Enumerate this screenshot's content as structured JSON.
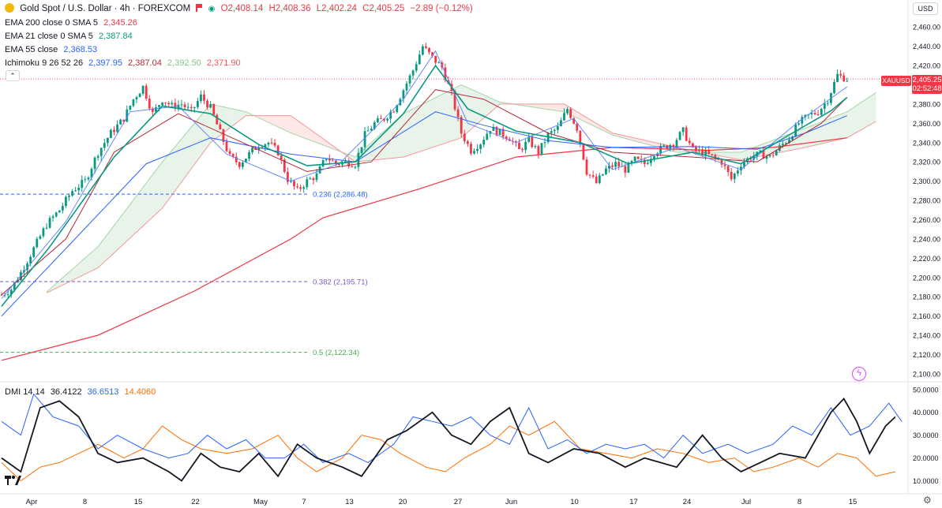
{
  "header": {
    "title": "Gold Spot / U.S. Dollar · 4h · FOREXCOM",
    "open": "O2,408.14",
    "high": "H2,408.36",
    "low": "L2,402.24",
    "close": "C2,405.25",
    "change": "−2.89 (−0.12%)",
    "currency": "USD"
  },
  "indicators": [
    {
      "label": "EMA 200 close 0 SMA 5",
      "values": [
        "2,345.26"
      ],
      "colors": [
        "#f23645"
      ]
    },
    {
      "label": "EMA 21 close 0 SMA 5",
      "values": [
        "2,387.84"
      ],
      "colors": [
        "#089981"
      ]
    },
    {
      "label": "EMA 55 close",
      "values": [
        "2,368.53"
      ],
      "colors": [
        "#2962ff"
      ]
    },
    {
      "label": "Ichimoku 9 26 52 26",
      "values": [
        "2,397.95",
        "2,387.04",
        "2,392.50",
        "2,371.90"
      ],
      "colors": [
        "#2962ff",
        "#b22833",
        "#81c784",
        "#f7525f"
      ]
    }
  ],
  "dmi": {
    "label": "DMI 14 14",
    "values": [
      "36.4122",
      "36.6513",
      "14.4060"
    ],
    "colors": [
      "#131722",
      "#2962ff",
      "#ff6d00"
    ]
  },
  "price_tag": {
    "symbol": "XAUUSD",
    "price": "2,405.25",
    "countdown": "02:52:48"
  },
  "fib_levels": [
    {
      "label": "0.236 (2,286.48)",
      "value": 2286.48,
      "color": "#2962ff"
    },
    {
      "label": "0.382 (2,195.71)",
      "value": 2195.71,
      "color": "#7e57c2"
    },
    {
      "label": "0.5 (2,122.34)",
      "value": 2122.34,
      "color": "#4caf50"
    }
  ],
  "chart_data": {
    "type": "candlestick",
    "price_axis": {
      "ticks": [
        "2,460.00",
        "2,440.00",
        "2,420.00",
        "2,400.00",
        "2,380.00",
        "2,360.00",
        "2,340.00",
        "2,320.00",
        "2,300.00",
        "2,280.00",
        "2,260.00",
        "2,240.00",
        "2,220.00",
        "2,200.00",
        "2,180.00",
        "2,160.00",
        "2,140.00",
        "2,120.00",
        "2,100.00"
      ],
      "range": [
        2095,
        2470
      ]
    },
    "dmi_axis": {
      "ticks": [
        "50.0000",
        "40.0000",
        "30.0000",
        "20.0000",
        "10.0000"
      ],
      "range": [
        5,
        52
      ]
    },
    "time_axis": [
      "Apr",
      "8",
      "15",
      "22",
      "May",
      "7",
      "13",
      "20",
      "27",
      "Jun",
      "10",
      "17",
      "24",
      "Jul",
      "8",
      "15"
    ],
    "close_path": [
      [
        0,
        2182
      ],
      [
        3,
        2188
      ],
      [
        6,
        2205
      ],
      [
        10,
        2230
      ],
      [
        14,
        2255
      ],
      [
        18,
        2270
      ],
      [
        22,
        2290
      ],
      [
        26,
        2300
      ],
      [
        30,
        2330
      ],
      [
        34,
        2350
      ],
      [
        38,
        2365
      ],
      [
        41,
        2385
      ],
      [
        44,
        2398
      ],
      [
        47,
        2370
      ],
      [
        50,
        2385
      ],
      [
        53,
        2378
      ],
      [
        56,
        2380
      ],
      [
        59,
        2372
      ],
      [
        62,
        2388
      ],
      [
        65,
        2376
      ],
      [
        68,
        2350
      ],
      [
        71,
        2325
      ],
      [
        74,
        2318
      ],
      [
        77,
        2328
      ],
      [
        80,
        2338
      ],
      [
        83,
        2340
      ],
      [
        86,
        2330
      ],
      [
        89,
        2302
      ],
      [
        92,
        2290
      ],
      [
        95,
        2300
      ],
      [
        98,
        2306
      ],
      [
        101,
        2325
      ],
      [
        104,
        2318
      ],
      [
        107,
        2320
      ],
      [
        110,
        2318
      ],
      [
        113,
        2348
      ],
      [
        116,
        2360
      ],
      [
        119,
        2365
      ],
      [
        122,
        2375
      ],
      [
        125,
        2395
      ],
      [
        128,
        2415
      ],
      [
        131,
        2440
      ],
      [
        134,
        2428
      ],
      [
        137,
        2418
      ],
      [
        140,
        2390
      ],
      [
        143,
        2350
      ],
      [
        146,
        2332
      ],
      [
        149,
        2340
      ],
      [
        152,
        2355
      ],
      [
        155,
        2350
      ],
      [
        158,
        2345
      ],
      [
        161,
        2332
      ],
      [
        164,
        2342
      ],
      [
        167,
        2330
      ],
      [
        170,
        2348
      ],
      [
        173,
        2355
      ],
      [
        176,
        2375
      ],
      [
        179,
        2355
      ],
      [
        182,
        2310
      ],
      [
        185,
        2298
      ],
      [
        188,
        2312
      ],
      [
        191,
        2318
      ],
      [
        194,
        2312
      ],
      [
        197,
        2322
      ],
      [
        200,
        2318
      ],
      [
        203,
        2330
      ],
      [
        206,
        2335
      ],
      [
        209,
        2340
      ],
      [
        212,
        2352
      ],
      [
        215,
        2332
      ],
      [
        218,
        2330
      ],
      [
        221,
        2325
      ],
      [
        224,
        2320
      ],
      [
        227,
        2302
      ],
      [
        230,
        2318
      ],
      [
        233,
        2325
      ],
      [
        236,
        2328
      ],
      [
        239,
        2325
      ],
      [
        242,
        2335
      ],
      [
        245,
        2345
      ],
      [
        248,
        2360
      ],
      [
        251,
        2368
      ],
      [
        254,
        2372
      ],
      [
        257,
        2385
      ],
      [
        260,
        2410
      ],
      [
        263,
        2406
      ]
    ],
    "ema200": [
      [
        0,
        2114
      ],
      [
        30,
        2140
      ],
      [
        60,
        2186
      ],
      [
        90,
        2240
      ],
      [
        100,
        2262
      ],
      [
        130,
        2292
      ],
      [
        160,
        2325
      ],
      [
        190,
        2335
      ],
      [
        220,
        2332
      ],
      [
        240,
        2335
      ],
      [
        263,
        2345
      ]
    ],
    "ema55": [
      [
        0,
        2160
      ],
      [
        20,
        2230
      ],
      [
        45,
        2318
      ],
      [
        65,
        2345
      ],
      [
        90,
        2328
      ],
      [
        110,
        2320
      ],
      [
        135,
        2372
      ],
      [
        150,
        2358
      ],
      [
        170,
        2342
      ],
      [
        190,
        2335
      ],
      [
        215,
        2336
      ],
      [
        235,
        2333
      ],
      [
        250,
        2350
      ],
      [
        263,
        2368
      ]
    ],
    "ema21": [
      [
        0,
        2170
      ],
      [
        15,
        2232
      ],
      [
        35,
        2325
      ],
      [
        50,
        2378
      ],
      [
        65,
        2370
      ],
      [
        80,
        2338
      ],
      [
        95,
        2316
      ],
      [
        110,
        2320
      ],
      [
        125,
        2370
      ],
      [
        135,
        2420
      ],
      [
        145,
        2375
      ],
      [
        160,
        2352
      ],
      [
        180,
        2340
      ],
      [
        195,
        2318
      ],
      [
        215,
        2330
      ],
      [
        230,
        2318
      ],
      [
        245,
        2348
      ],
      [
        258,
        2373
      ],
      [
        263,
        2387
      ]
    ],
    "tenkan": [
      [
        0,
        2178
      ],
      [
        20,
        2258
      ],
      [
        40,
        2372
      ],
      [
        55,
        2378
      ],
      [
        70,
        2328
      ],
      [
        90,
        2300
      ],
      [
        105,
        2318
      ],
      [
        125,
        2385
      ],
      [
        135,
        2435
      ],
      [
        145,
        2360
      ],
      [
        160,
        2340
      ],
      [
        178,
        2365
      ],
      [
        190,
        2312
      ],
      [
        210,
        2335
      ],
      [
        230,
        2312
      ],
      [
        248,
        2362
      ],
      [
        263,
        2398
      ]
    ],
    "kijun": [
      [
        0,
        2182
      ],
      [
        20,
        2240
      ],
      [
        35,
        2330
      ],
      [
        55,
        2370
      ],
      [
        75,
        2340
      ],
      [
        95,
        2310
      ],
      [
        115,
        2320
      ],
      [
        135,
        2395
      ],
      [
        150,
        2385
      ],
      [
        170,
        2350
      ],
      [
        190,
        2330
      ],
      [
        215,
        2325
      ],
      [
        235,
        2320
      ],
      [
        255,
        2360
      ],
      [
        263,
        2387
      ]
    ],
    "cloud": {
      "span_a": [
        [
          14,
          2185
        ],
        [
          30,
          2232
        ],
        [
          50,
          2320
        ],
        [
          65,
          2380
        ],
        [
          76,
          2372
        ],
        [
          90,
          2350
        ],
        [
          110,
          2325
        ],
        [
          125,
          2370
        ],
        [
          143,
          2400
        ],
        [
          155,
          2382
        ],
        [
          175,
          2372
        ],
        [
          190,
          2348
        ],
        [
          210,
          2330
        ],
        [
          230,
          2330
        ],
        [
          250,
          2355
        ],
        [
          263,
          2372
        ],
        [
          272,
          2392
        ]
      ],
      "span_b": [
        [
          14,
          2184
        ],
        [
          30,
          2210
        ],
        [
          50,
          2272
        ],
        [
          65,
          2340
        ],
        [
          76,
          2368
        ],
        [
          90,
          2368
        ],
        [
          110,
          2320
        ],
        [
          125,
          2325
        ],
        [
          143,
          2345
        ],
        [
          155,
          2380
        ],
        [
          175,
          2380
        ],
        [
          190,
          2350
        ],
        [
          210,
          2335
        ],
        [
          230,
          2322
        ],
        [
          250,
          2335
        ],
        [
          263,
          2345
        ],
        [
          272,
          2362
        ]
      ]
    },
    "dmi_adx": [
      [
        0,
        20
      ],
      [
        6,
        14
      ],
      [
        12,
        42
      ],
      [
        18,
        45
      ],
      [
        24,
        38
      ],
      [
        30,
        22
      ],
      [
        36,
        18
      ],
      [
        44,
        20
      ],
      [
        52,
        14
      ],
      [
        56,
        10
      ],
      [
        62,
        22
      ],
      [
        68,
        16
      ],
      [
        74,
        14
      ],
      [
        80,
        22
      ],
      [
        86,
        12
      ],
      [
        92,
        26
      ],
      [
        98,
        20
      ],
      [
        106,
        16
      ],
      [
        112,
        12
      ],
      [
        120,
        28
      ],
      [
        126,
        32
      ],
      [
        134,
        40
      ],
      [
        140,
        30
      ],
      [
        146,
        26
      ],
      [
        152,
        36
      ],
      [
        158,
        42
      ],
      [
        164,
        22
      ],
      [
        170,
        18
      ],
      [
        178,
        24
      ],
      [
        186,
        22
      ],
      [
        194,
        16
      ],
      [
        200,
        20
      ],
      [
        210,
        16
      ],
      [
        218,
        30
      ],
      [
        224,
        20
      ],
      [
        230,
        14
      ],
      [
        236,
        18
      ],
      [
        242,
        22
      ],
      [
        250,
        20
      ],
      [
        258,
        40
      ],
      [
        262,
        46
      ],
      [
        266,
        36
      ],
      [
        270,
        22
      ],
      [
        275,
        34
      ],
      [
        278,
        38
      ]
    ],
    "dmi_plus": [
      [
        0,
        36
      ],
      [
        6,
        30
      ],
      [
        10,
        48
      ],
      [
        16,
        38
      ],
      [
        24,
        34
      ],
      [
        30,
        24
      ],
      [
        36,
        30
      ],
      [
        44,
        24
      ],
      [
        52,
        20
      ],
      [
        58,
        22
      ],
      [
        64,
        30
      ],
      [
        70,
        24
      ],
      [
        76,
        28
      ],
      [
        82,
        20
      ],
      [
        88,
        20
      ],
      [
        94,
        26
      ],
      [
        100,
        18
      ],
      [
        108,
        22
      ],
      [
        114,
        18
      ],
      [
        122,
        26
      ],
      [
        128,
        38
      ],
      [
        134,
        36
      ],
      [
        140,
        34
      ],
      [
        146,
        38
      ],
      [
        152,
        30
      ],
      [
        158,
        26
      ],
      [
        164,
        42
      ],
      [
        170,
        24
      ],
      [
        176,
        28
      ],
      [
        182,
        22
      ],
      [
        188,
        26
      ],
      [
        194,
        24
      ],
      [
        200,
        26
      ],
      [
        206,
        20
      ],
      [
        212,
        30
      ],
      [
        218,
        22
      ],
      [
        226,
        26
      ],
      [
        232,
        22
      ],
      [
        240,
        26
      ],
      [
        246,
        34
      ],
      [
        252,
        30
      ],
      [
        258,
        42
      ],
      [
        264,
        30
      ],
      [
        270,
        34
      ],
      [
        276,
        44
      ],
      [
        280,
        36
      ]
    ],
    "dmi_minus": [
      [
        0,
        18
      ],
      [
        6,
        10
      ],
      [
        12,
        16
      ],
      [
        18,
        18
      ],
      [
        24,
        22
      ],
      [
        30,
        26
      ],
      [
        38,
        20
      ],
      [
        44,
        24
      ],
      [
        50,
        34
      ],
      [
        56,
        28
      ],
      [
        62,
        24
      ],
      [
        70,
        22
      ],
      [
        78,
        24
      ],
      [
        86,
        30
      ],
      [
        92,
        20
      ],
      [
        98,
        14
      ],
      [
        106,
        20
      ],
      [
        112,
        30
      ],
      [
        118,
        28
      ],
      [
        124,
        22
      ],
      [
        132,
        16
      ],
      [
        138,
        14
      ],
      [
        144,
        20
      ],
      [
        152,
        26
      ],
      [
        158,
        34
      ],
      [
        164,
        30
      ],
      [
        172,
        36
      ],
      [
        180,
        24
      ],
      [
        188,
        22
      ],
      [
        196,
        20
      ],
      [
        204,
        24
      ],
      [
        212,
        22
      ],
      [
        220,
        18
      ],
      [
        228,
        20
      ],
      [
        234,
        14
      ],
      [
        240,
        16
      ],
      [
        248,
        20
      ],
      [
        254,
        16
      ],
      [
        260,
        22
      ],
      [
        266,
        20
      ],
      [
        272,
        12
      ],
      [
        278,
        14
      ]
    ]
  }
}
